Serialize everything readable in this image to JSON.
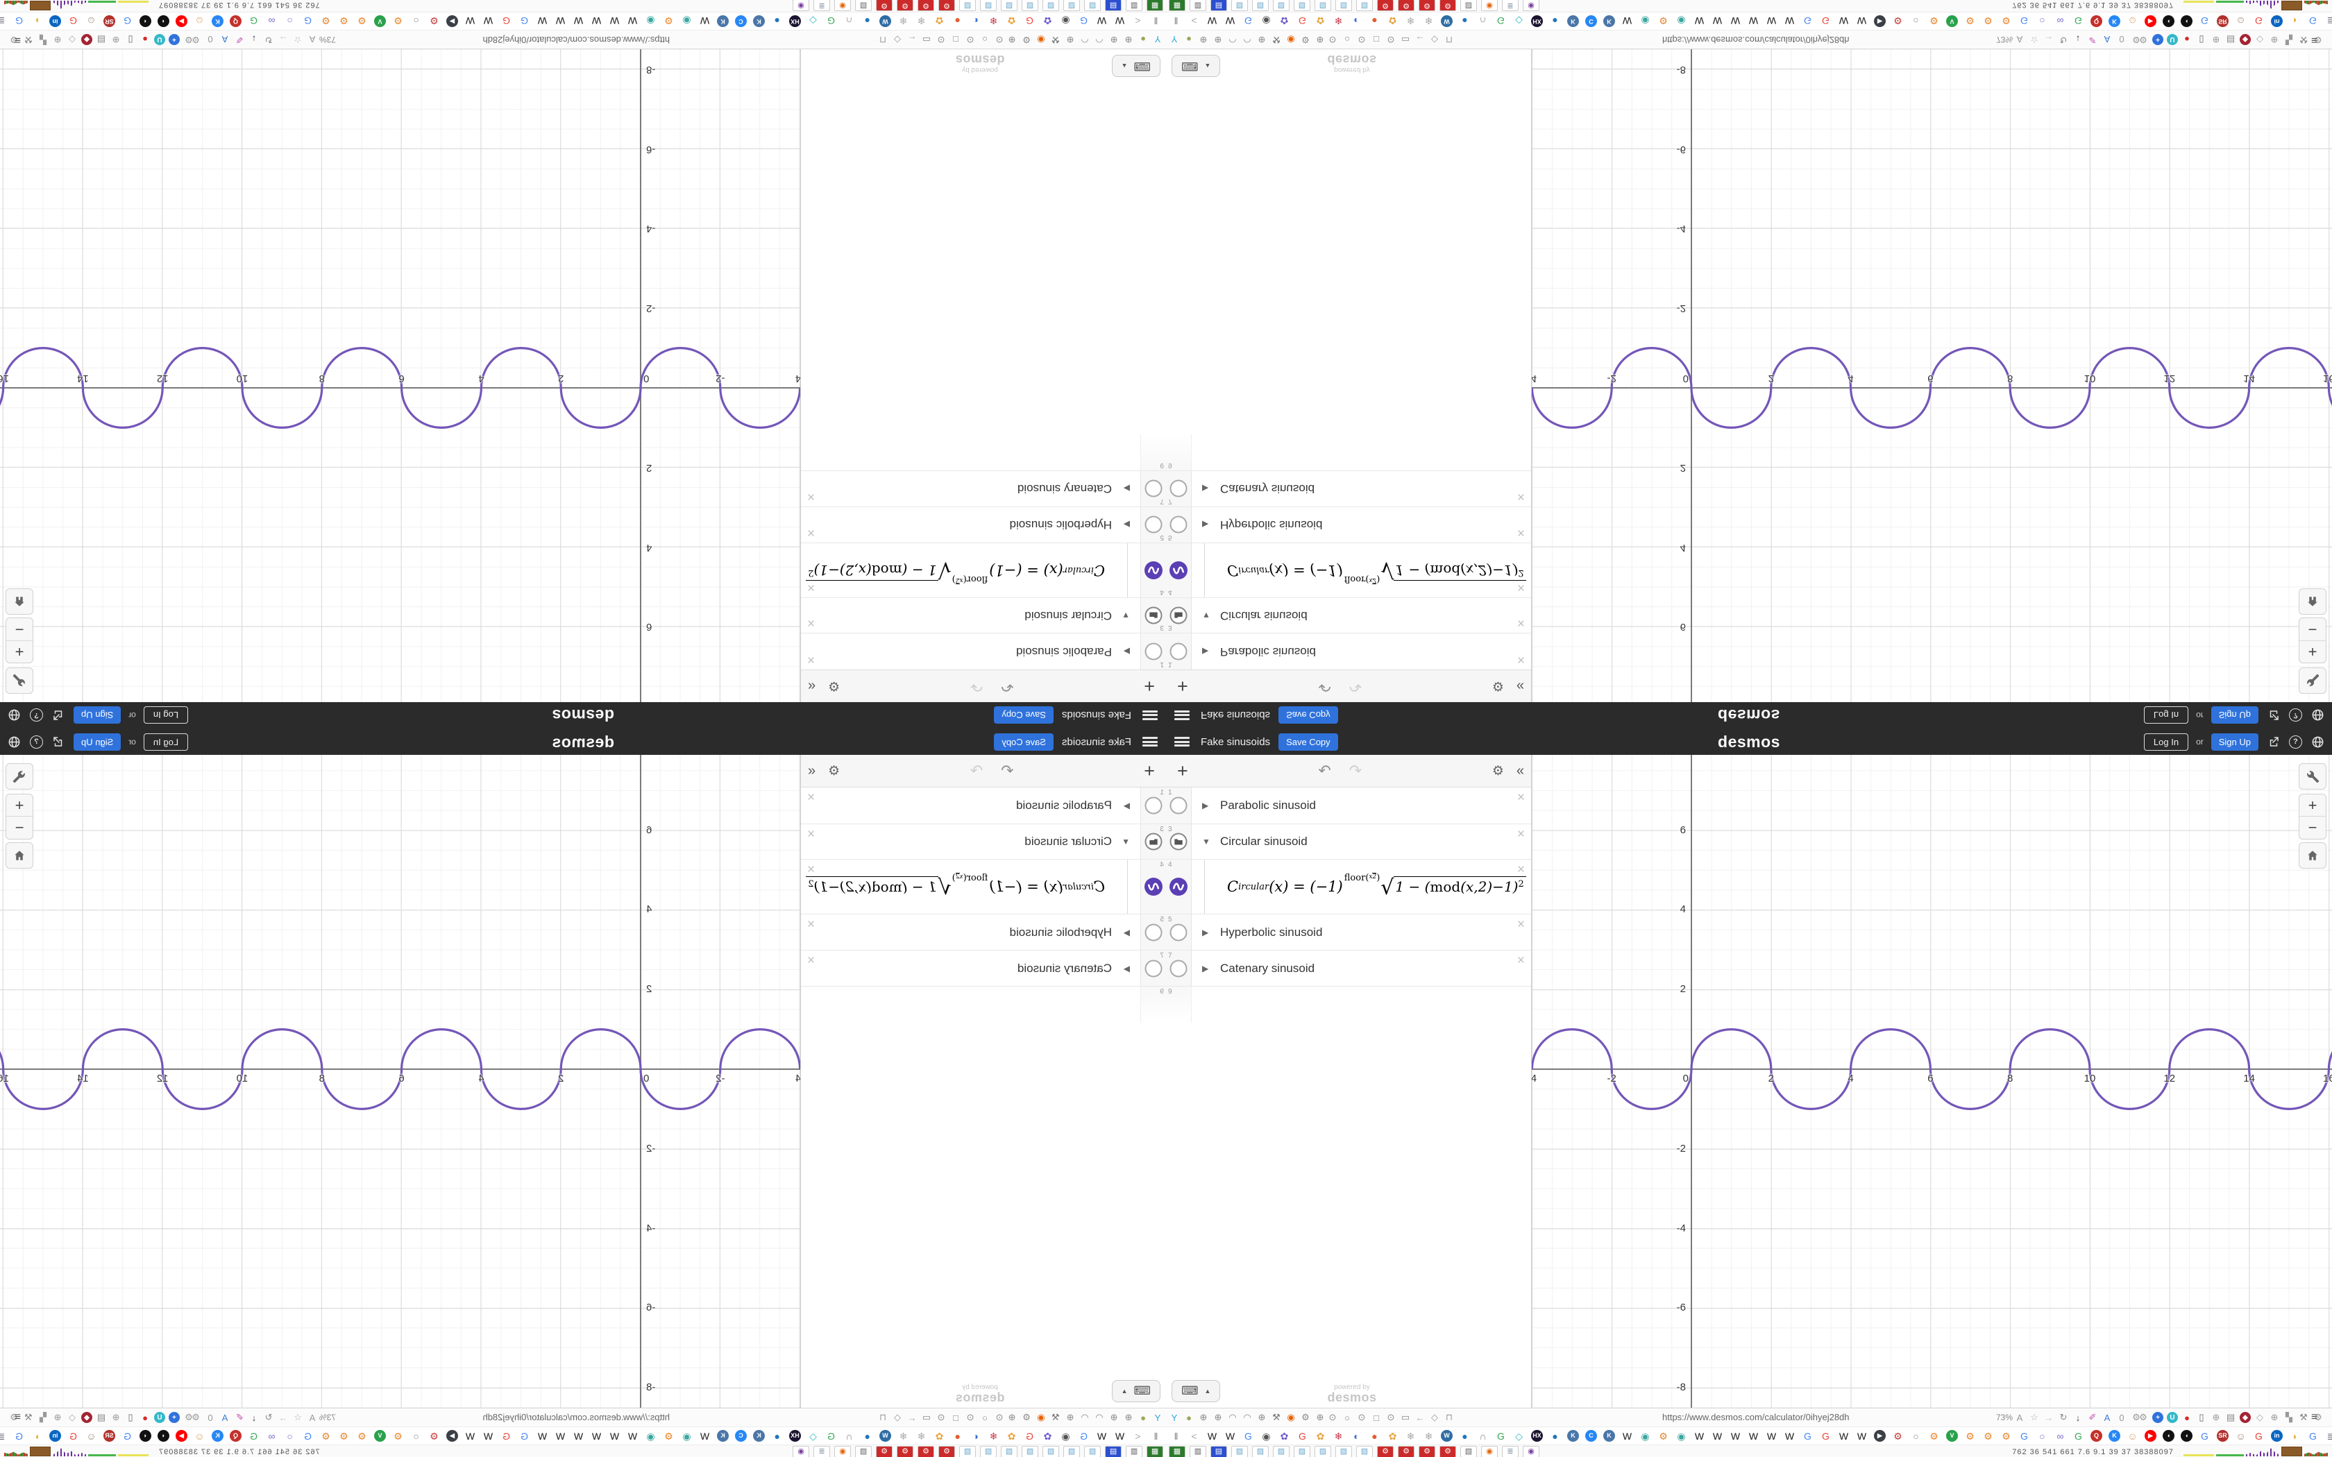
{
  "header": {
    "title": "Fake sinusoids",
    "save_copy": "Save Copy",
    "logo": "desmos",
    "log_in": "Log In",
    "or": "or",
    "sign_up": "Sign Up",
    "help": "?"
  },
  "panel": {
    "toolbar": {
      "add": "+",
      "undo": "↶",
      "redo": "↷",
      "gear": "⚙",
      "collapse": "«"
    },
    "rows": [
      {
        "num": "1",
        "arrow": "▶",
        "label": "Parabolic sinusoid",
        "close": "×"
      },
      {
        "num": "3",
        "arrow": "▼",
        "label": "Circular sinusoid",
        "close": "×"
      },
      {
        "num": "4",
        "close": "×"
      },
      {
        "num": "5",
        "arrow": "▶",
        "label": "Hyperbolic sinusoid",
        "close": "×"
      },
      {
        "num": "7",
        "arrow": "▶",
        "label": "Catenary sinusoid",
        "close": "×"
      },
      {
        "num": "9"
      }
    ],
    "equation": {
      "C": "C",
      "sub": "ircular",
      "mid": "(x) = (−1)",
      "sup_fn": "floor",
      "frac_n": "x",
      "frac_d": "2",
      "sqrt_pre": "1 − (",
      "sqrt_fn": "mod",
      "sqrt_post": "(x,2)−1)",
      "sqrt_exp": "2"
    },
    "keyboard_up": "▲",
    "keyboard_glyph": "⌨",
    "powered_by_1": "powered by",
    "powered_by_2": "desmos"
  },
  "graph_controls": {
    "zoom_in": "+",
    "zoom_out": "−"
  },
  "chart_data": {
    "type": "line",
    "title": "Fake sinusoids — Circular sinusoid",
    "equation": "C_ircular(x) = (-1)^floor(x/2) · sqrt(1-(mod(x,2)-1)^2)",
    "x_ticks": [
      -4,
      -2,
      0,
      2,
      4,
      6,
      8,
      10,
      12,
      14,
      16
    ],
    "y_ticks": [
      -8,
      -6,
      -4,
      -2,
      2,
      4,
      6
    ],
    "x_range": [
      -3.7,
      16.5
    ],
    "y_range": [
      -8.5,
      7.9
    ],
    "grid": {
      "minor_step": 0.5,
      "major_step": 2,
      "grid_on": true
    },
    "curve": {
      "color": "#7456b8",
      "shape": "unit semicircle bumps, width 2, alternating up/down",
      "x_start": -4,
      "x_end": 18,
      "bump_width": 2,
      "first_bump": "up",
      "amplitude": 1
    }
  },
  "chrome": {
    "nav": {
      "left_icons": [
        [
          "Y",
          "#2aa4d8"
        ],
        [
          "●",
          "#9aa75a"
        ],
        [
          "⊕",
          "#8a8a8a"
        ],
        [
          "⊕",
          "#8a8a8a"
        ],
        [
          "◠",
          "#8a8a8a"
        ],
        [
          "◠",
          "#8a8a8a"
        ],
        [
          "⊕",
          "#8a8a8a"
        ],
        [
          "⚒",
          "#777777"
        ],
        [
          "◉",
          "#e66000"
        ],
        [
          "⚙",
          "#8a8a8a"
        ],
        [
          "⊕",
          "#8a8a8a"
        ]
      ],
      "page_icons": [
        [
          "⊙",
          "#888888"
        ],
        [
          "○",
          "#888888"
        ],
        [
          "⊙",
          "#888888"
        ],
        [
          "□",
          "#888888"
        ],
        [
          "⊙",
          "#888888"
        ],
        [
          "▭",
          "#888888"
        ],
        [
          "←",
          "#aaaaaa"
        ],
        [
          "◇",
          "#999999"
        ],
        [
          "⊓",
          "#999999"
        ]
      ],
      "url": "https://www.desmos.com/calculator/0ihyej28dh",
      "zoom": "73%",
      "url_icons": [
        [
          "A",
          "#999999"
        ],
        [
          "☆",
          "#b0b0b0"
        ],
        [
          "→",
          "#c5c5c5"
        ],
        [
          "↻",
          "#888888"
        ],
        [
          "↓",
          "#444444"
        ],
        [
          "✐",
          "#c44fb0"
        ],
        [
          "A",
          "#3a7bd5"
        ],
        [
          "0",
          "#999999"
        ],
        [
          "⚙",
          "#999999"
        ]
      ],
      "right_icons": [
        [
          "⚙",
          "#999999"
        ],
        [
          "+",
          "#ffffff",
          "#2f72dc"
        ],
        [
          "U",
          "#ffffff",
          "#35b8c8"
        ],
        [
          "●",
          "#d42c2c"
        ],
        [
          "▯",
          "#666666"
        ],
        [
          "⊕",
          "#999999"
        ],
        [
          "▤",
          "#888888"
        ],
        [
          "◆",
          "#ffffff",
          "#a32433"
        ],
        [
          "◇",
          "#aaaaaa"
        ],
        [
          "⊕",
          "#999999"
        ],
        [
          "▚",
          "#999999"
        ],
        [
          "⚒",
          "#888888"
        ],
        [
          "⚙",
          "#999999"
        ]
      ],
      "menu": "≡"
    },
    "bookmarks": [
      [
        "‖",
        "#777777"
      ],
      [
        "<",
        "#aaaaaa"
      ],
      [
        "W",
        "#1a1a1a"
      ],
      [
        "W",
        "#1a1a1a"
      ],
      [
        "G",
        "#4285f4"
      ],
      [
        "◉",
        "#555555"
      ],
      [
        "✿",
        "#6a5acd"
      ],
      [
        "G",
        "#ea4335"
      ],
      [
        "✿",
        "#e8a33d"
      ],
      [
        "❄",
        "#c43a4b"
      ],
      [
        "◐",
        "#3b6fd0"
      ],
      [
        "●",
        "#e55b2d"
      ],
      [
        "✿",
        "#e8a33d"
      ],
      [
        "❄",
        "#aaaaaa"
      ],
      [
        "❄",
        "#aaaaaa"
      ],
      [
        "W",
        "#ffffff",
        "#2e6da4"
      ],
      [
        "●",
        "#2176bd"
      ],
      [
        "∩",
        "#888888"
      ],
      [
        "G",
        "#34a853"
      ],
      [
        "◇",
        "#35b8c0"
      ],
      [
        "HX",
        "#ffffff",
        "#1b1430"
      ],
      [
        "●",
        "#2176bd"
      ],
      [
        "K",
        "#ffffff",
        "#4a76a8"
      ],
      [
        "C",
        "#ffffff",
        "#2787f5"
      ],
      [
        "K",
        "#ffffff",
        "#4a76a8"
      ],
      [
        "W",
        "#1a1a1a"
      ],
      [
        "◉",
        "#3aa6a0"
      ],
      [
        "⚙",
        "#e8852b"
      ],
      [
        "◉",
        "#3aa6a0"
      ],
      [
        "W",
        "#1a1a1a"
      ],
      [
        "W",
        "#1a1a1a"
      ],
      [
        "W",
        "#1a1a1a"
      ],
      [
        "W",
        "#1a1a1a"
      ],
      [
        "W",
        "#1a1a1a"
      ],
      [
        "W",
        "#1a1a1a"
      ],
      [
        "G",
        "#4285f4"
      ],
      [
        "G",
        "#ea4335"
      ],
      [
        "W",
        "#1a1a1a"
      ],
      [
        "W",
        "#1a1a1a"
      ],
      [
        "▶",
        "#ffffff",
        "#3b3f46"
      ],
      [
        "⚙",
        "#c23a3a"
      ],
      [
        "○",
        "#888888"
      ],
      [
        "⚙",
        "#e8852b"
      ],
      [
        "V",
        "#ffffff",
        "#2aa14b"
      ],
      [
        "⚙",
        "#e8852b"
      ],
      [
        "⚙",
        "#e8852b"
      ],
      [
        "⚙",
        "#e8852b"
      ],
      [
        "G",
        "#4285f4"
      ],
      [
        "○",
        "#7b68c4"
      ],
      [
        "∞",
        "#7b68c4"
      ],
      [
        "G",
        "#34a853"
      ],
      [
        "Q",
        "#ffffff",
        "#c4302b"
      ],
      [
        "K",
        "#ffffff",
        "#2787f5"
      ],
      [
        "☺",
        "#d9a066"
      ],
      [
        "▶",
        "#ffffff",
        "#ff0000"
      ],
      [
        "◖",
        "#ffffff",
        "#111111"
      ],
      [
        "◖",
        "#ffffff",
        "#111111"
      ],
      [
        "G",
        "#4285f4"
      ],
      [
        "SR",
        "#ffffff",
        "#b3312c"
      ],
      [
        "☺",
        "#9a8a7a"
      ],
      [
        "G",
        "#ea4335"
      ],
      [
        "in",
        "#ffffff",
        "#0a66c2"
      ],
      [
        "◗",
        "#e8b53d"
      ],
      [
        "G",
        "#4285f4"
      ],
      [
        "≣",
        "#666677"
      ],
      [
        "◉",
        "#ffffff",
        "#c13584"
      ],
      [
        "G",
        "#34a853"
      ],
      [
        "❄",
        "#c43a4b"
      ],
      [
        "G",
        "#4285f4"
      ],
      [
        "❄",
        "#c43a4b"
      ],
      [
        "❄",
        "#c43a4b"
      ],
      [
        "G",
        "#ea4335"
      ],
      [
        "G",
        "#34a853"
      ],
      [
        "G",
        "#4285f4"
      ],
      [
        "✳",
        "#6a3fb5"
      ],
      [
        "❄",
        "#c43a4b"
      ],
      [
        "❄",
        "#c43a4b"
      ],
      [
        "G",
        "#4285f4"
      ],
      [
        "✿",
        "#e8a33d"
      ],
      [
        "✿",
        "#e8a33d"
      ],
      [
        "G",
        "#ea4335"
      ]
    ],
    "bookmarks_overflow": ">",
    "bookmarks_up": "^",
    "taskbar": {
      "apps": [
        [
          "▦",
          "#ffffff",
          "#2d7a2d"
        ],
        [
          "▥",
          "#555555",
          "#ffffff"
        ],
        [
          "▤",
          "#ffffff",
          "#2b4fd0"
        ],
        [
          "▨",
          "#6aa7cc",
          "#ffffff"
        ],
        [
          "▨",
          "#6aa7cc",
          "#ffffff"
        ],
        [
          "▨",
          "#6aa7cc",
          "#ffffff"
        ],
        [
          "▨",
          "#6aa7cc",
          "#ffffff"
        ],
        [
          "▨",
          "#6aa7cc",
          "#ffffff"
        ],
        [
          "▨",
          "#6aa7cc",
          "#ffffff"
        ],
        [
          "▨",
          "#6aa7cc",
          "#ffffff"
        ],
        [
          "⚙",
          "#ffffff",
          "#cc2a2a"
        ],
        [
          "⚙",
          "#ffffff",
          "#cc2a2a"
        ],
        [
          "⚙",
          "#ffffff",
          "#cc2a2a"
        ],
        [
          "⚙",
          "#ffffff",
          "#cc2a2a"
        ],
        [
          "▧",
          "#666666",
          "#ffffff"
        ],
        [
          "◉",
          "#e66000",
          "#ffffff"
        ],
        [
          "≣",
          "#8899aa",
          "#ffffff"
        ],
        [
          "◉",
          "#7a3fa0",
          "#ffffff"
        ]
      ],
      "stats": "762   36   541 661   7.6   9.1   39   37   38388097",
      "sparklines": [
        "yellow",
        "green",
        "purple",
        "brown",
        "red"
      ]
    }
  }
}
